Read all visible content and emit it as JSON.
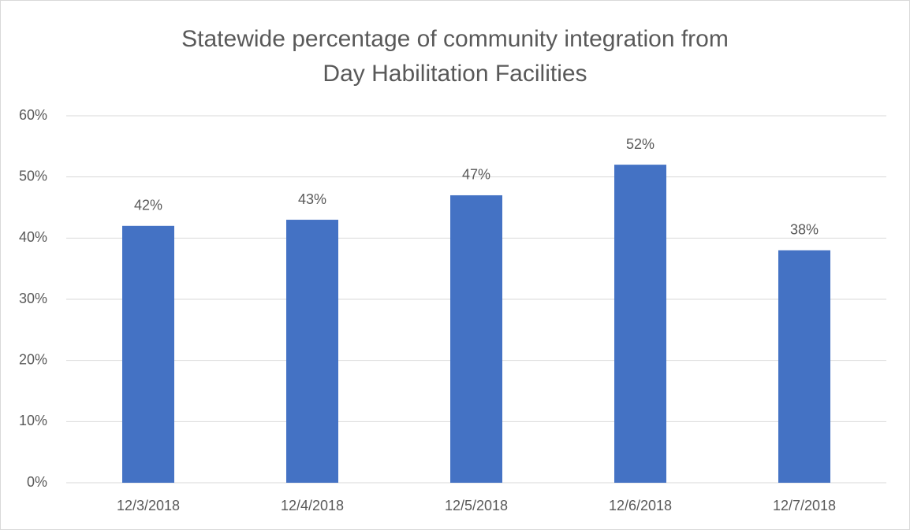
{
  "chart_data": {
    "type": "bar",
    "title": "Statewide percentage of community integration from Day Habilitation Facilities",
    "categories": [
      "12/3/2018",
      "12/4/2018",
      "12/5/2018",
      "12/6/2018",
      "12/7/2018"
    ],
    "values": [
      42,
      43,
      47,
      52,
      38
    ],
    "value_labels": [
      "42%",
      "43%",
      "47%",
      "52%",
      "38%"
    ],
    "color": "#4472c4",
    "ylim": [
      0,
      60
    ],
    "yticks": [
      {
        "value": 0,
        "label": "0%"
      },
      {
        "value": 10,
        "label": "10%"
      },
      {
        "value": 20,
        "label": "20%"
      },
      {
        "value": 30,
        "label": "30%"
      },
      {
        "value": 40,
        "label": "40%"
      },
      {
        "value": 50,
        "label": "50%"
      },
      {
        "value": 60,
        "label": "60%"
      }
    ],
    "grid": true
  }
}
